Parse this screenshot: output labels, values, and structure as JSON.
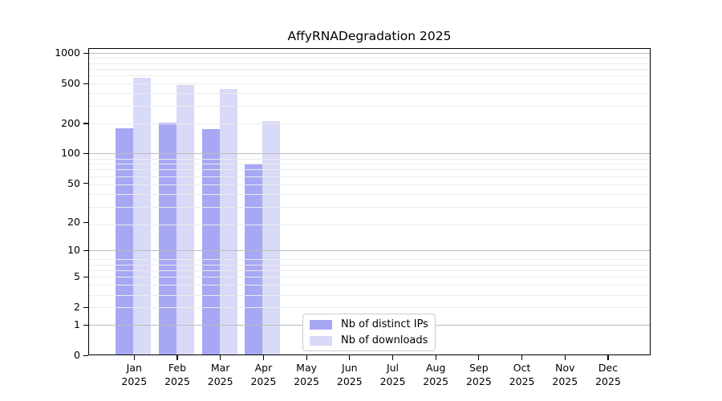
{
  "title": "AffyRNADegradation 2025",
  "chart_data": {
    "type": "bar",
    "title": "AffyRNADegradation 2025",
    "categories": [
      "Jan",
      "Feb",
      "Mar",
      "Apr",
      "May",
      "Jun",
      "Jul",
      "Aug",
      "Sep",
      "Oct",
      "Nov",
      "Dec"
    ],
    "x_tick_year": "2025",
    "series": [
      {
        "name": "Nb of distinct IPs",
        "color": "#a7a7f4",
        "values": [
          180,
          204,
          176,
          78,
          0,
          0,
          0,
          0,
          0,
          0,
          0,
          0
        ]
      },
      {
        "name": "Nb of downloads",
        "color": "#d9d9f8",
        "values": [
          566,
          485,
          440,
          212,
          0,
          0,
          0,
          0,
          0,
          0,
          0,
          0
        ]
      }
    ],
    "y_ticks": [
      0,
      1,
      2,
      5,
      10,
      20,
      50,
      100,
      200,
      500,
      1000
    ],
    "y_scale": "log1p",
    "ylim": [
      0,
      1000
    ],
    "grid": "horizontal major+minor log gridlines",
    "legend_position": "inside bottom-center",
    "colors": {
      "grid_major": "#bcbcbc",
      "grid_minor": "#ebebeb",
      "axis": "#000000",
      "legend_border": "#cccccc",
      "background": "#ffffff"
    }
  }
}
